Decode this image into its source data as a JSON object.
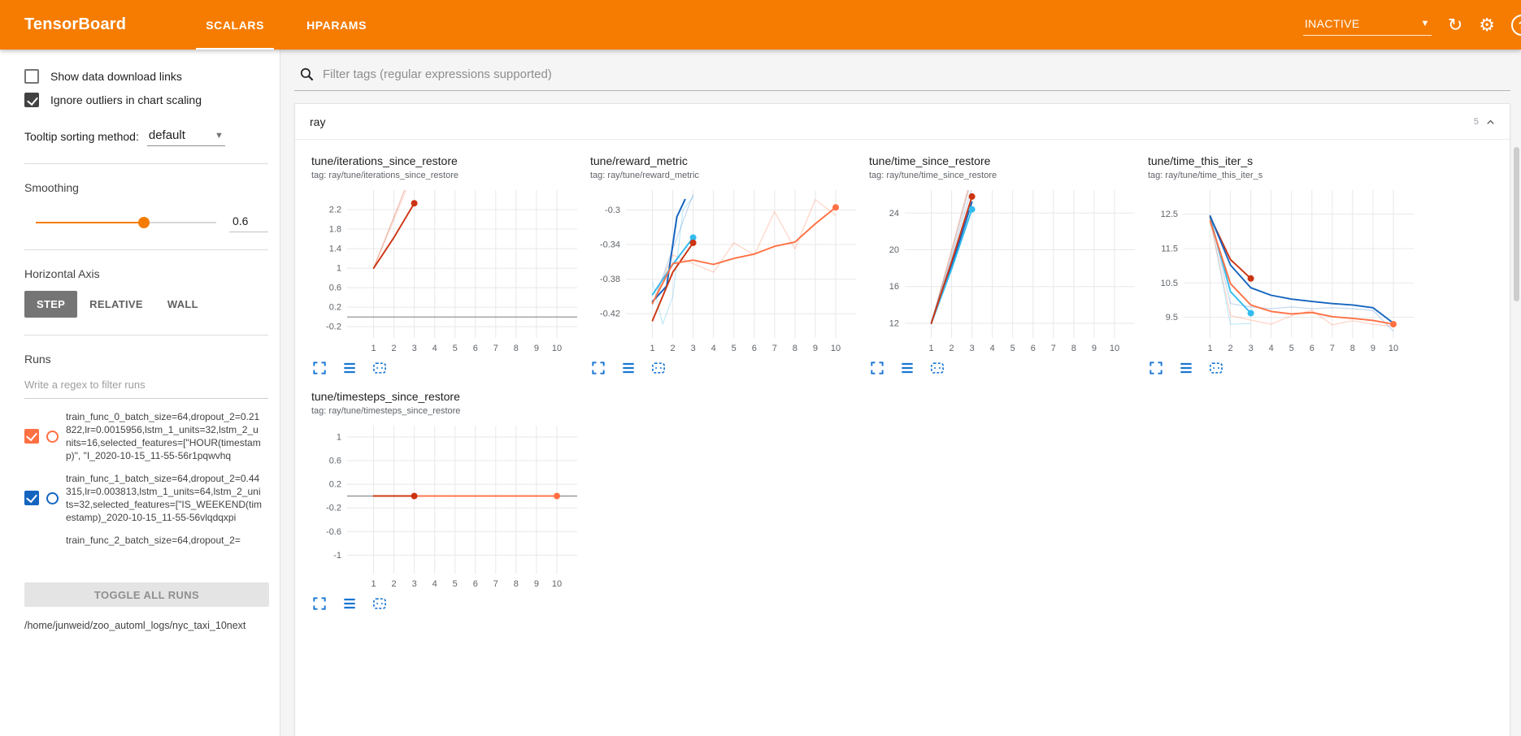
{
  "header": {
    "title": "TensorBoard",
    "tabs": [
      {
        "label": "SCALARS",
        "active": true
      },
      {
        "label": "HPARAMS",
        "active": false
      }
    ],
    "status_dropdown": "INACTIVE",
    "icons": {
      "reload": "↻",
      "settings": "⚙",
      "help": "?",
      "caret_down": "▼"
    }
  },
  "sidebar": {
    "show_download_links": {
      "label": "Show data download links",
      "checked": false
    },
    "ignore_outliers": {
      "label": "Ignore outliers in chart scaling",
      "checked": true
    },
    "tooltip_sorting": {
      "label": "Tooltip sorting method:",
      "value": "default"
    },
    "smoothing": {
      "label": "Smoothing",
      "value": "0.6"
    },
    "horizontal_axis": {
      "label": "Horizontal Axis",
      "options": [
        "STEP",
        "RELATIVE",
        "WALL"
      ],
      "selected": "STEP"
    },
    "runs": {
      "section_label": "Runs",
      "filter_placeholder": "Write a regex to filter runs",
      "items": [
        {
          "label": "train_func_0_batch_size=64,dropout_2=0.21822,lr=0.0015956,lstm_1_units=32,lstm_2_units=16,selected_features=[\"HOUR(timestamp)\", \"I_2020-10-15_11-55-56r1pqwvhq",
          "checked": true,
          "color": "#ff7043",
          "partial": false
        },
        {
          "label": "train_func_1_batch_size=64,dropout_2=0.44315,lr=0.003813,lstm_1_units=64,lstm_2_units=32,selected_features=[\"IS_WEEKEND(timestamp)_2020-10-15_11-55-56vlqdqxpi",
          "checked": true,
          "color": "#1565c0",
          "partial": false
        },
        {
          "label": "train_func_2_batch_size=64,dropout_2=",
          "checked": true,
          "color": "#cc3311",
          "partial": true
        }
      ],
      "toggle_all_label": "TOGGLE ALL RUNS",
      "log_dir": "/home/junweid/zoo_automl_logs/nyc_taxi_10next"
    }
  },
  "main": {
    "tag_filter_placeholder": "Filter tags (regular expressions supported)",
    "group": {
      "name": "ray",
      "count": "5"
    }
  },
  "chart_data": [
    {
      "type": "line",
      "title": "tune/iterations_since_restore",
      "tag": "tag: ray/tune/iterations_since_restore",
      "xlim": [
        -0.3,
        11
      ],
      "ylim": [
        -0.43,
        2.6
      ],
      "xticks": [
        1,
        2,
        3,
        4,
        5,
        6,
        7,
        8,
        9,
        10
      ],
      "yticks": [
        -0.2,
        0.2,
        0.6,
        1,
        1.4,
        1.8,
        2.2
      ],
      "zero_line": true,
      "series": [
        {
          "name": "train_func_0 raw",
          "color": "#ff7043",
          "width": 1.2,
          "opacity": 0.25,
          "points": [
            [
              1,
              1
            ],
            [
              2,
              2
            ],
            [
              3,
              3
            ]
          ]
        },
        {
          "name": "train_func_2 raw",
          "color": "#cc3311",
          "width": 1.2,
          "opacity": 0.3,
          "points": [
            [
              1,
              1
            ],
            [
              2,
              2.05
            ],
            [
              3,
              3.1
            ]
          ]
        },
        {
          "name": "train_func_2 smoothed",
          "color": "#cc3311",
          "width": 1.9,
          "opacity": 1,
          "points": [
            [
              1,
              1
            ],
            [
              2,
              1.63
            ],
            [
              3,
              2.33
            ]
          ],
          "end_dot": true
        }
      ]
    },
    {
      "type": "line",
      "title": "tune/reward_metric",
      "tag": "tag: ray/tune/reward_metric",
      "xlim": [
        -0.3,
        11
      ],
      "ylim": [
        -0.448,
        -0.277
      ],
      "xticks": [
        1,
        2,
        3,
        4,
        5,
        6,
        7,
        8,
        9,
        10
      ],
      "yticks": [
        -0.42,
        -0.38,
        -0.34,
        -0.3
      ],
      "zero_line": false,
      "series": [
        {
          "name": "cyan raw",
          "color": "#33bbee",
          "width": 1.2,
          "opacity": 0.3,
          "points": [
            [
              1,
              -0.383
            ],
            [
              1.5,
              -0.432
            ],
            [
              2,
              -0.4
            ],
            [
              2.5,
              -0.3
            ],
            [
              3,
              -0.285
            ]
          ]
        },
        {
          "name": "blue raw",
          "color": "#1565c0",
          "width": 1.2,
          "opacity": 0.25,
          "points": [
            [
              1,
              -0.41
            ],
            [
              2,
              -0.345
            ],
            [
              3,
              -0.282
            ]
          ]
        },
        {
          "name": "orange raw",
          "color": "#ff7043",
          "width": 1.2,
          "opacity": 0.3,
          "points": [
            [
              1,
              -0.408
            ],
            [
              2,
              -0.352
            ],
            [
              3,
              -0.362
            ],
            [
              4,
              -0.372
            ],
            [
              5,
              -0.338
            ],
            [
              6,
              -0.352
            ],
            [
              7,
              -0.302
            ],
            [
              8,
              -0.345
            ],
            [
              9,
              -0.288
            ],
            [
              10,
              -0.306
            ]
          ]
        },
        {
          "name": "blue smoothed",
          "color": "#1565c0",
          "width": 2,
          "opacity": 1,
          "points": [
            [
              1,
              -0.406
            ],
            [
              1.7,
              -0.388
            ],
            [
              2.2,
              -0.308
            ],
            [
              2.6,
              -0.288
            ]
          ]
        },
        {
          "name": "cyan smoothed",
          "color": "#33bbee",
          "width": 1.9,
          "opacity": 1,
          "points": [
            [
              1,
              -0.398
            ],
            [
              2,
              -0.363
            ],
            [
              3,
              -0.332
            ]
          ],
          "end_dot": true
        },
        {
          "name": "red smoothed",
          "color": "#cc3311",
          "width": 1.9,
          "opacity": 1,
          "points": [
            [
              1,
              -0.428
            ],
            [
              2,
              -0.372
            ],
            [
              3,
              -0.338
            ]
          ],
          "end_dot": true
        },
        {
          "name": "orange smoothed",
          "color": "#ff7043",
          "width": 1.9,
          "opacity": 1,
          "points": [
            [
              1,
              -0.408
            ],
            [
              2,
              -0.362
            ],
            [
              3,
              -0.358
            ],
            [
              4,
              -0.363
            ],
            [
              5,
              -0.356
            ],
            [
              6,
              -0.351
            ],
            [
              7,
              -0.342
            ],
            [
              8,
              -0.337
            ],
            [
              9,
              -0.316
            ],
            [
              10,
              -0.297
            ]
          ],
          "end_dot": true
        }
      ]
    },
    {
      "type": "line",
      "title": "tune/time_since_restore",
      "tag": "tag: ray/tune/time_since_restore",
      "xlim": [
        -0.3,
        11
      ],
      "ylim": [
        10.4,
        26.5
      ],
      "xticks": [
        1,
        2,
        3,
        4,
        5,
        6,
        7,
        8,
        9,
        10
      ],
      "yticks": [
        12,
        16,
        20,
        24
      ],
      "zero_line": false,
      "series": [
        {
          "name": "gray raw",
          "color": "#bbbbbb",
          "width": 1.2,
          "opacity": 0.6,
          "points": [
            [
              1,
              12.1
            ],
            [
              2,
              19.6
            ],
            [
              3,
              27.8
            ]
          ]
        },
        {
          "name": "red raw",
          "color": "#cc3311",
          "width": 1.2,
          "opacity": 0.3,
          "points": [
            [
              1,
              12
            ],
            [
              2,
              20
            ],
            [
              3,
              28.2
            ]
          ]
        },
        {
          "name": "blue raw",
          "color": "#1565c0",
          "width": 1.2,
          "opacity": 0.25,
          "points": [
            [
              1,
              12.2
            ],
            [
              2,
              19.2
            ],
            [
              3,
              26.8
            ]
          ]
        },
        {
          "name": "blue smoothed",
          "color": "#1565c0",
          "width": 1.9,
          "opacity": 1,
          "points": [
            [
              1,
              12
            ],
            [
              2,
              18.2
            ],
            [
              3,
              25.2
            ]
          ]
        },
        {
          "name": "cyan smoothed",
          "color": "#33bbee",
          "width": 1.9,
          "opacity": 1,
          "points": [
            [
              1,
              12
            ],
            [
              2,
              17.9
            ],
            [
              3,
              24.4
            ]
          ],
          "end_dot": true
        },
        {
          "name": "red smoothed",
          "color": "#cc3311",
          "width": 1.9,
          "opacity": 1,
          "points": [
            [
              1,
              12
            ],
            [
              2,
              18.7
            ],
            [
              3,
              25.8
            ]
          ],
          "end_dot": true
        }
      ]
    },
    {
      "type": "line",
      "title": "tune/time_this_iter_s",
      "tag": "tag: ray/tune/time_this_iter_s",
      "xlim": [
        -0.3,
        11
      ],
      "ylim": [
        8.9,
        13.2
      ],
      "xticks": [
        1,
        2,
        3,
        4,
        5,
        6,
        7,
        8,
        9,
        10
      ],
      "yticks": [
        9.5,
        10.5,
        11.5,
        12.5
      ],
      "zero_line": false,
      "series": [
        {
          "name": "cyan raw",
          "color": "#33bbee",
          "width": 1.2,
          "opacity": 0.3,
          "points": [
            [
              1,
              12.4
            ],
            [
              2,
              9.3
            ],
            [
              3,
              9.32
            ]
          ]
        },
        {
          "name": "orange raw",
          "color": "#ff7043",
          "width": 1.2,
          "opacity": 0.3,
          "points": [
            [
              1,
              12.3
            ],
            [
              2,
              9.55
            ],
            [
              3,
              9.42
            ],
            [
              4,
              9.3
            ],
            [
              5,
              9.55
            ],
            [
              6,
              9.7
            ],
            [
              7,
              9.28
            ],
            [
              8,
              9.4
            ],
            [
              9,
              9.3
            ],
            [
              10,
              9.24
            ]
          ]
        },
        {
          "name": "blue raw",
          "color": "#1565c0",
          "width": 1.2,
          "opacity": 0.25,
          "points": [
            [
              1,
              12.45
            ],
            [
              2,
              9.9
            ],
            [
              3,
              9.8
            ],
            [
              4,
              9.75
            ],
            [
              5,
              9.8
            ],
            [
              6,
              9.75
            ],
            [
              7,
              9.78
            ],
            [
              8,
              9.75
            ],
            [
              9,
              9.7
            ],
            [
              10,
              9.1
            ]
          ]
        },
        {
          "name": "cyan smoothed",
          "color": "#33bbee",
          "width": 1.9,
          "opacity": 1,
          "points": [
            [
              1,
              12.4
            ],
            [
              2,
              10.25
            ],
            [
              3,
              9.62
            ]
          ],
          "end_dot": true
        },
        {
          "name": "red smoothed",
          "color": "#cc3311",
          "width": 1.9,
          "opacity": 1,
          "points": [
            [
              1,
              12.42
            ],
            [
              2,
              11.18
            ],
            [
              3,
              10.63
            ]
          ],
          "end_dot": true
        },
        {
          "name": "blue smoothed",
          "color": "#1565c0",
          "width": 1.9,
          "opacity": 1,
          "points": [
            [
              1,
              12.45
            ],
            [
              2,
              11.02
            ],
            [
              3,
              10.36
            ],
            [
              4,
              10.14
            ],
            [
              5,
              10.03
            ],
            [
              6,
              9.96
            ],
            [
              7,
              9.9
            ],
            [
              8,
              9.86
            ],
            [
              9,
              9.78
            ],
            [
              10,
              9.33
            ]
          ]
        },
        {
          "name": "orange smoothed",
          "color": "#ff7043",
          "width": 1.9,
          "opacity": 1,
          "points": [
            [
              1,
              12.3
            ],
            [
              2,
              10.48
            ],
            [
              3,
              9.86
            ],
            [
              4,
              9.67
            ],
            [
              5,
              9.6
            ],
            [
              6,
              9.64
            ],
            [
              7,
              9.52
            ],
            [
              8,
              9.47
            ],
            [
              9,
              9.41
            ],
            [
              10,
              9.3
            ]
          ],
          "end_dot": true
        }
      ]
    },
    {
      "type": "line",
      "title": "tune/timesteps_since_restore",
      "tag": "tag: ray/tune/timesteps_since_restore",
      "xlim": [
        -0.3,
        11
      ],
      "ylim": [
        -1.31,
        1.19
      ],
      "xticks": [
        1,
        2,
        3,
        4,
        5,
        6,
        7,
        8,
        9,
        10
      ],
      "yticks": [
        -1,
        -0.6,
        -0.2,
        0.2,
        0.6,
        1
      ],
      "zero_line": true,
      "series": [
        {
          "name": "orange smoothed",
          "color": "#ff7043",
          "width": 1.9,
          "opacity": 1,
          "points": [
            [
              1,
              0
            ],
            [
              10,
              0
            ]
          ],
          "end_dot": true
        },
        {
          "name": "red smoothed",
          "color": "#cc3311",
          "width": 1.9,
          "opacity": 1,
          "points": [
            [
              1,
              0
            ],
            [
              3,
              0
            ]
          ],
          "end_dot": true
        }
      ]
    }
  ]
}
